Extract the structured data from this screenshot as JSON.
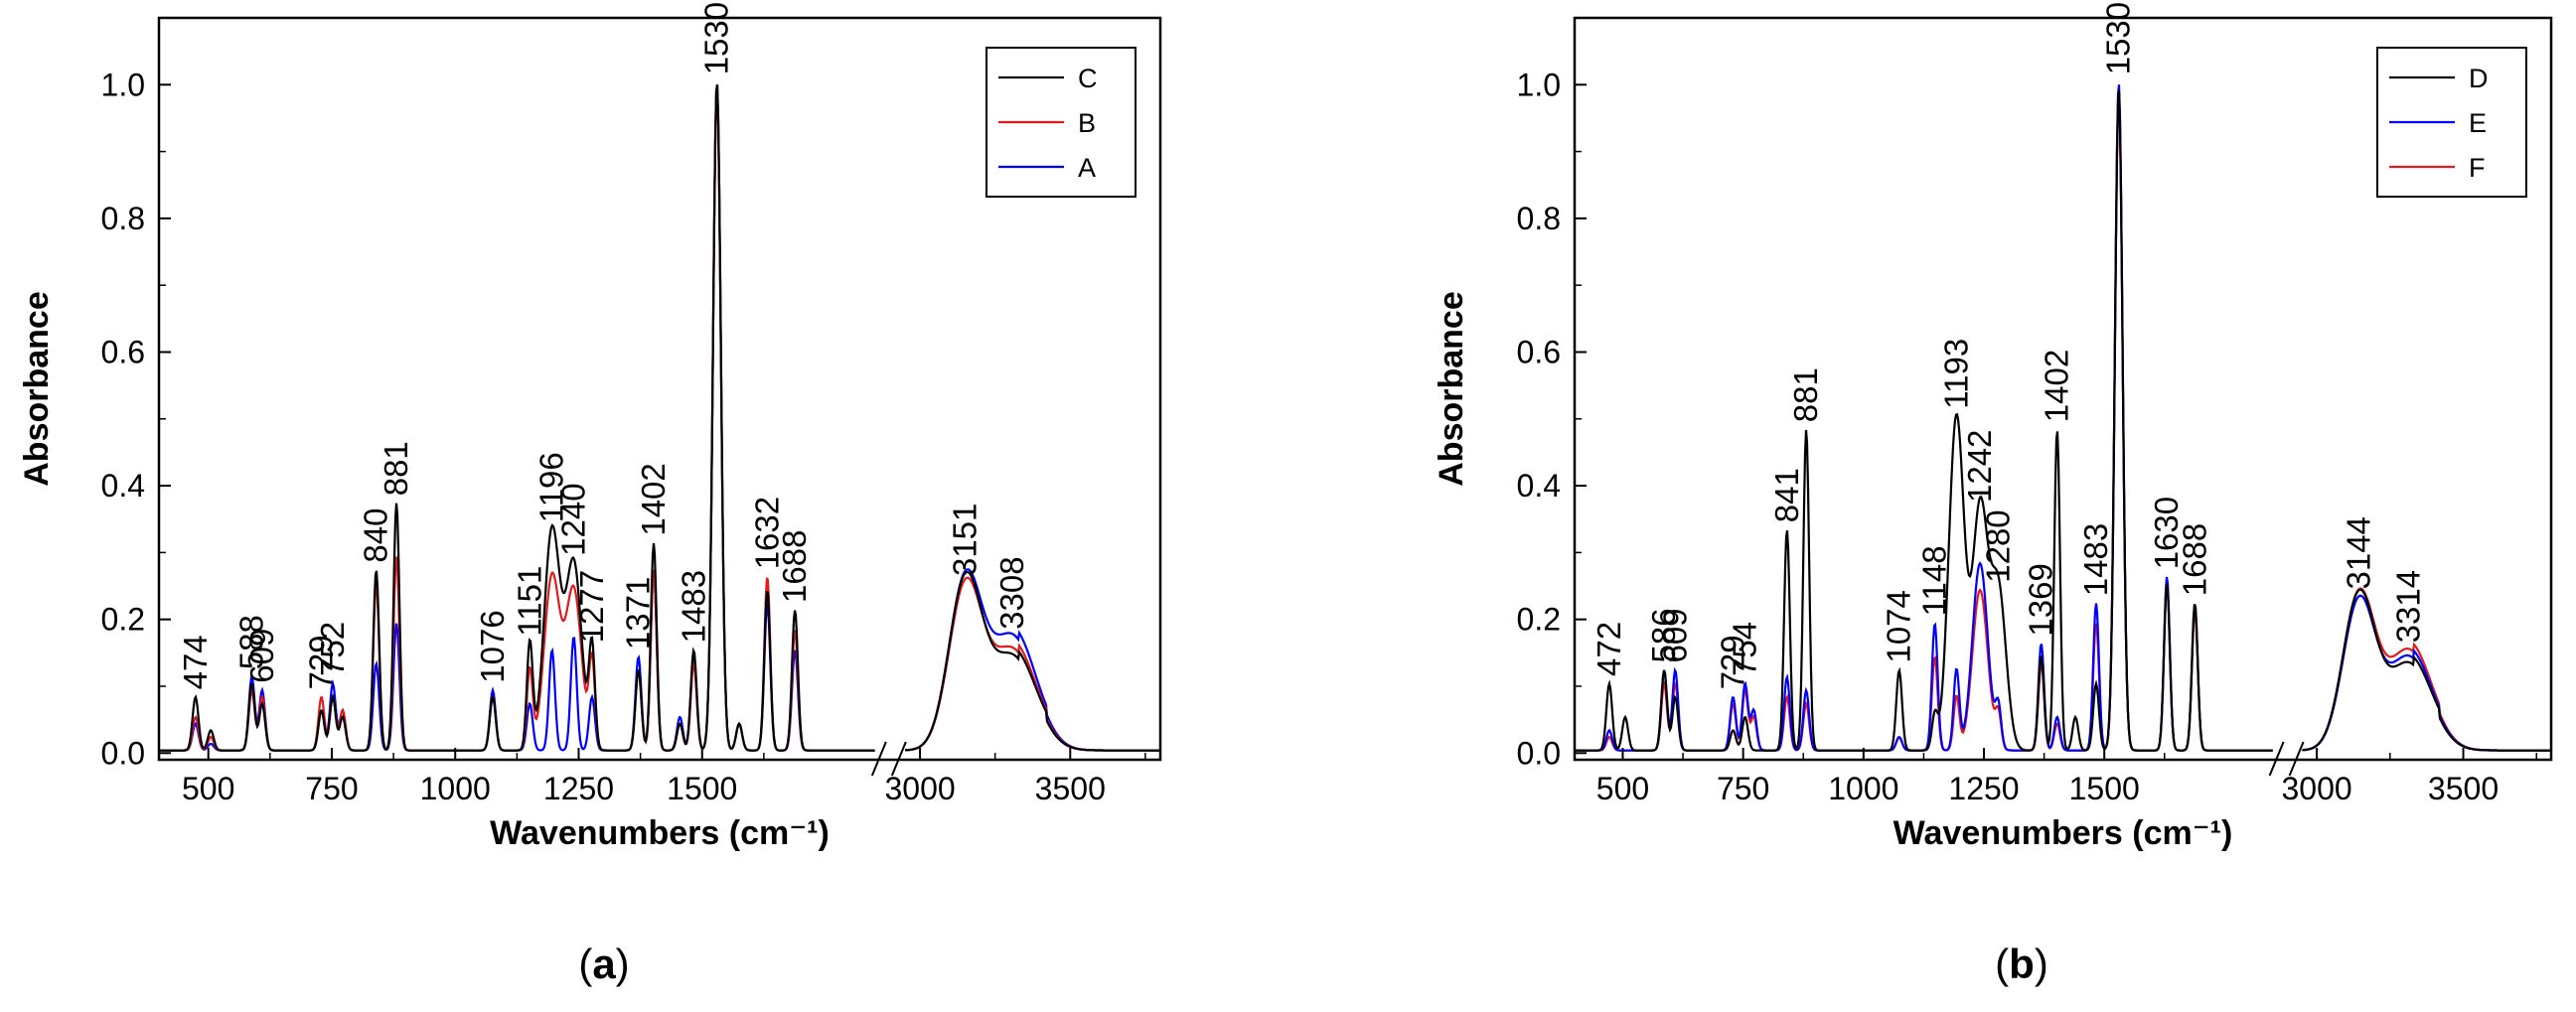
{
  "figure": {
    "caption_a": {
      "open": "(",
      "letter": "a",
      "close": ")"
    },
    "caption_b": {
      "open": "(",
      "letter": "b",
      "close": ")"
    }
  },
  "chart_data": [
    {
      "type": "line",
      "panel": "a",
      "xlabel": "Wavenumbers (cm⁻¹)",
      "ylabel": "Absorbance",
      "xlim": [
        400,
        3800
      ],
      "x_axis_break": [
        1850,
        2950
      ],
      "ylim": [
        -0.01,
        1.1
      ],
      "x_ticks": [
        500,
        750,
        1000,
        1250,
        1500,
        3000,
        3500
      ],
      "y_ticks": [
        0.0,
        0.2,
        0.4,
        0.6,
        0.8,
        1.0
      ],
      "y_tick_labels": [
        "0.0",
        "0.2",
        "0.4",
        "0.6",
        "0.8",
        "1.0"
      ],
      "legend": {
        "position": "top-right",
        "entries": [
          "C",
          "B",
          "A"
        ]
      },
      "series": [
        {
          "name": "C",
          "color": "#000000",
          "peaks": [
            [
              474,
              0.08
            ],
            [
              505,
              0.03
            ],
            [
              588,
              0.1
            ],
            [
              609,
              0.07
            ],
            [
              729,
              0.06
            ],
            [
              752,
              0.08
            ],
            [
              772,
              0.05
            ],
            [
              840,
              0.27
            ],
            [
              881,
              0.37
            ],
            [
              1076,
              0.08
            ],
            [
              1151,
              0.16
            ],
            [
              1196,
              0.33
            ],
            [
              1240,
              0.28
            ],
            [
              1277,
              0.15
            ],
            [
              1371,
              0.12
            ],
            [
              1402,
              0.31
            ],
            [
              1455,
              0.04
            ],
            [
              1483,
              0.15
            ],
            [
              1530,
              1.0
            ],
            [
              1575,
              0.04
            ],
            [
              1632,
              0.24
            ],
            [
              1688,
              0.21
            ],
            [
              3151,
              0.25
            ],
            [
              3308,
              0.14
            ]
          ]
        },
        {
          "name": "B",
          "color": "#e31a1c",
          "peaks": [
            [
              474,
              0.05
            ],
            [
              505,
              0.02
            ],
            [
              588,
              0.09
            ],
            [
              609,
              0.08
            ],
            [
              729,
              0.08
            ],
            [
              752,
              0.08
            ],
            [
              772,
              0.06
            ],
            [
              840,
              0.25
            ],
            [
              881,
              0.29
            ],
            [
              1076,
              0.08
            ],
            [
              1151,
              0.12
            ],
            [
              1196,
              0.26
            ],
            [
              1240,
              0.24
            ],
            [
              1277,
              0.13
            ],
            [
              1371,
              0.12
            ],
            [
              1402,
              0.27
            ],
            [
              1455,
              0.04
            ],
            [
              1483,
              0.13
            ],
            [
              1530,
              0.99
            ],
            [
              1575,
              0.04
            ],
            [
              1632,
              0.26
            ],
            [
              1688,
              0.18
            ],
            [
              3151,
              0.24
            ],
            [
              3308,
              0.15
            ]
          ]
        },
        {
          "name": "A",
          "color": "#0000ff",
          "peaks": [
            [
              474,
              0.04
            ],
            [
              505,
              0.01
            ],
            [
              588,
              0.11
            ],
            [
              609,
              0.09
            ],
            [
              729,
              0.06
            ],
            [
              752,
              0.1
            ],
            [
              772,
              0.06
            ],
            [
              840,
              0.13
            ],
            [
              881,
              0.19
            ],
            [
              1076,
              0.09
            ],
            [
              1151,
              0.07
            ],
            [
              1196,
              0.15
            ],
            [
              1240,
              0.17
            ],
            [
              1277,
              0.08
            ],
            [
              1371,
              0.14
            ],
            [
              1402,
              0.27
            ],
            [
              1455,
              0.05
            ],
            [
              1483,
              0.14
            ],
            [
              1530,
              1.0
            ],
            [
              1575,
              0.04
            ],
            [
              1632,
              0.22
            ],
            [
              1688,
              0.15
            ],
            [
              3151,
              0.25
            ],
            [
              3308,
              0.17
            ]
          ]
        }
      ],
      "annotations": [
        {
          "text": "474",
          "x": 474,
          "y": 0.08
        },
        {
          "text": "588",
          "x": 588,
          "y": 0.11
        },
        {
          "text": "609",
          "x": 609,
          "y": 0.09
        },
        {
          "text": "729",
          "x": 729,
          "y": 0.08
        },
        {
          "text": "752",
          "x": 752,
          "y": 0.1
        },
        {
          "text": "840",
          "x": 840,
          "y": 0.27
        },
        {
          "text": "881",
          "x": 881,
          "y": 0.37
        },
        {
          "text": "1076",
          "x": 1076,
          "y": 0.09
        },
        {
          "text": "1151",
          "x": 1151,
          "y": 0.16
        },
        {
          "text": "1196",
          "x": 1196,
          "y": 0.33
        },
        {
          "text": "1240",
          "x": 1240,
          "y": 0.28
        },
        {
          "text": "1277",
          "x": 1277,
          "y": 0.15
        },
        {
          "text": "1371",
          "x": 1371,
          "y": 0.14
        },
        {
          "text": "1402",
          "x": 1402,
          "y": 0.31
        },
        {
          "text": "1483",
          "x": 1483,
          "y": 0.15
        },
        {
          "text": "1530",
          "x": 1530,
          "y": 1.0
        },
        {
          "text": "1632",
          "x": 1632,
          "y": 0.26
        },
        {
          "text": "1688",
          "x": 1688,
          "y": 0.21
        },
        {
          "text": "3151",
          "x": 3151,
          "y": 0.25
        },
        {
          "text": "3308",
          "x": 3308,
          "y": 0.17
        }
      ]
    },
    {
      "type": "line",
      "panel": "b",
      "xlabel": "Wavenumbers (cm⁻¹)",
      "ylabel": "Absorbance",
      "xlim": [
        400,
        3800
      ],
      "x_axis_break": [
        1850,
        2950
      ],
      "ylim": [
        -0.01,
        1.1
      ],
      "x_ticks": [
        500,
        750,
        1000,
        1250,
        1500,
        3000,
        3500
      ],
      "y_ticks": [
        0.0,
        0.2,
        0.4,
        0.6,
        0.8,
        1.0
      ],
      "y_tick_labels": [
        "0.0",
        "0.2",
        "0.4",
        "0.6",
        "0.8",
        "1.0"
      ],
      "legend": {
        "position": "top-right",
        "entries": [
          "D",
          "E",
          "F"
        ]
      },
      "series": [
        {
          "name": "D",
          "color": "#000000",
          "peaks": [
            [
              472,
              0.1
            ],
            [
              505,
              0.05
            ],
            [
              586,
              0.12
            ],
            [
              609,
              0.08
            ],
            [
              729,
              0.03
            ],
            [
              754,
              0.05
            ],
            [
              841,
              0.33
            ],
            [
              881,
              0.48
            ],
            [
              1074,
              0.12
            ],
            [
              1148,
              0.05
            ],
            [
              1193,
              0.5
            ],
            [
              1242,
              0.36
            ],
            [
              1280,
              0.24
            ],
            [
              1369,
              0.14
            ],
            [
              1402,
              0.48
            ],
            [
              1440,
              0.05
            ],
            [
              1483,
              0.1
            ],
            [
              1530,
              0.99
            ],
            [
              1630,
              0.25
            ],
            [
              1688,
              0.22
            ],
            [
              3144,
              0.23
            ],
            [
              3314,
              0.13
            ]
          ]
        },
        {
          "name": "E",
          "color": "#0000ff",
          "peaks": [
            [
              472,
              0.03
            ],
            [
              586,
              0.12
            ],
            [
              609,
              0.12
            ],
            [
              729,
              0.08
            ],
            [
              754,
              0.1
            ],
            [
              772,
              0.06
            ],
            [
              841,
              0.11
            ],
            [
              881,
              0.09
            ],
            [
              1074,
              0.02
            ],
            [
              1148,
              0.19
            ],
            [
              1193,
              0.12
            ],
            [
              1242,
              0.28
            ],
            [
              1280,
              0.06
            ],
            [
              1369,
              0.16
            ],
            [
              1402,
              0.05
            ],
            [
              1483,
              0.22
            ],
            [
              1530,
              1.0
            ],
            [
              1630,
              0.26
            ],
            [
              1688,
              0.22
            ],
            [
              3144,
              0.22
            ],
            [
              3314,
              0.14
            ]
          ]
        },
        {
          "name": "F",
          "color": "#e31a1c",
          "peaks": [
            [
              472,
              0.02
            ],
            [
              586,
              0.1
            ],
            [
              609,
              0.1
            ],
            [
              729,
              0.07
            ],
            [
              754,
              0.09
            ],
            [
              772,
              0.05
            ],
            [
              841,
              0.08
            ],
            [
              881,
              0.07
            ],
            [
              1074,
              0.02
            ],
            [
              1148,
              0.14
            ],
            [
              1193,
              0.08
            ],
            [
              1242,
              0.24
            ],
            [
              1280,
              0.05
            ],
            [
              1369,
              0.13
            ],
            [
              1402,
              0.04
            ],
            [
              1483,
              0.19
            ],
            [
              1530,
              0.98
            ],
            [
              1630,
              0.25
            ],
            [
              1688,
              0.21
            ],
            [
              3144,
              0.23
            ],
            [
              3314,
              0.15
            ]
          ]
        }
      ],
      "annotations": [
        {
          "text": "472",
          "x": 472,
          "y": 0.1
        },
        {
          "text": "586",
          "x": 586,
          "y": 0.12
        },
        {
          "text": "609",
          "x": 609,
          "y": 0.12
        },
        {
          "text": "729",
          "x": 729,
          "y": 0.08
        },
        {
          "text": "754",
          "x": 754,
          "y": 0.1
        },
        {
          "text": "841",
          "x": 841,
          "y": 0.33
        },
        {
          "text": "881",
          "x": 881,
          "y": 0.48
        },
        {
          "text": "1074",
          "x": 1074,
          "y": 0.12
        },
        {
          "text": "1148",
          "x": 1148,
          "y": 0.19
        },
        {
          "text": "1193",
          "x": 1193,
          "y": 0.5
        },
        {
          "text": "1242",
          "x": 1242,
          "y": 0.36
        },
        {
          "text": "1280",
          "x": 1280,
          "y": 0.24
        },
        {
          "text": "1369",
          "x": 1369,
          "y": 0.16
        },
        {
          "text": "1402",
          "x": 1402,
          "y": 0.48
        },
        {
          "text": "1483",
          "x": 1483,
          "y": 0.22
        },
        {
          "text": "1530",
          "x": 1530,
          "y": 1.0
        },
        {
          "text": "1630",
          "x": 1630,
          "y": 0.26
        },
        {
          "text": "1688",
          "x": 1688,
          "y": 0.22
        },
        {
          "text": "3144",
          "x": 3144,
          "y": 0.23
        },
        {
          "text": "3314",
          "x": 3314,
          "y": 0.15
        }
      ]
    }
  ]
}
